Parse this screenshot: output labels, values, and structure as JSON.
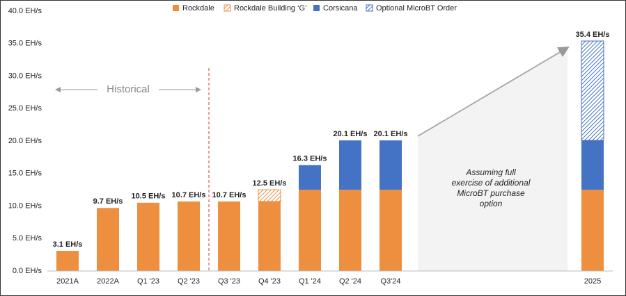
{
  "chart_data": {
    "type": "stacked_bar",
    "categories": [
      "2021A",
      "2022A",
      "Q1 '23",
      "Q2 '23",
      "Q3 '23",
      "Q4 '23",
      "Q1 '24",
      "Q2 '24",
      "Q3'24",
      null,
      null,
      null,
      null,
      "2025"
    ],
    "series": [
      {
        "name": "Rockdale",
        "color": "#ee8f3f",
        "pattern": "solid",
        "values": [
          3.1,
          9.7,
          10.5,
          10.7,
          10.7,
          10.7,
          12.5,
          12.5,
          12.5,
          null,
          null,
          null,
          null,
          12.5
        ]
      },
      {
        "name": "Rockdale Building ‘G’",
        "color": "#ee8f3f",
        "pattern": "hatch",
        "values": [
          null,
          null,
          null,
          null,
          null,
          1.8,
          null,
          null,
          null,
          null,
          null,
          null,
          null,
          null
        ]
      },
      {
        "name": "Corsicana",
        "color": "#4472c4",
        "pattern": "solid",
        "values": [
          null,
          null,
          null,
          null,
          null,
          null,
          3.8,
          7.6,
          7.6,
          null,
          null,
          null,
          null,
          7.6
        ]
      },
      {
        "name": "Optional MicroBT Order",
        "color": "#4472c4",
        "pattern": "hatch",
        "values": [
          null,
          null,
          null,
          null,
          null,
          null,
          null,
          null,
          null,
          null,
          null,
          null,
          null,
          15.3
        ]
      }
    ],
    "totals": [
      3.1,
      9.7,
      10.5,
      10.7,
      10.7,
      12.5,
      16.3,
      20.1,
      20.1,
      null,
      null,
      null,
      null,
      35.4
    ],
    "total_labels": [
      "3.1 EH/s",
      "9.7 EH/s",
      "10.5 EH/s",
      "10.7 EH/s",
      "10.7 EH/s",
      "12.5 EH/s",
      "16.3 EH/s",
      "20.1 EH/s",
      "20.1 EH/s",
      null,
      null,
      null,
      null,
      "35.4 EH/s"
    ],
    "ylim": [
      0,
      40
    ],
    "yticks": [
      {
        "value": 0,
        "label": "0.0 EH/s"
      },
      {
        "value": 5,
        "label": "5.0 EH/s"
      },
      {
        "value": 10,
        "label": "10.0 EH/s"
      },
      {
        "value": 15,
        "label": "15.0 EH/s"
      },
      {
        "value": 20,
        "label": "20.0 EH/s"
      },
      {
        "value": 25,
        "label": "25.0 EH/s"
      },
      {
        "value": 30,
        "label": "30.0 EH/s"
      },
      {
        "value": 35,
        "label": "35.0 EH/s"
      },
      {
        "value": 40,
        "label": "40.0 EH/s"
      }
    ],
    "grid": false,
    "legend": "top",
    "historical_label": "Historical",
    "annotation_lines": [
      "Assuming full",
      "exercise of additional",
      "MicroBT purchase",
      "option"
    ]
  }
}
